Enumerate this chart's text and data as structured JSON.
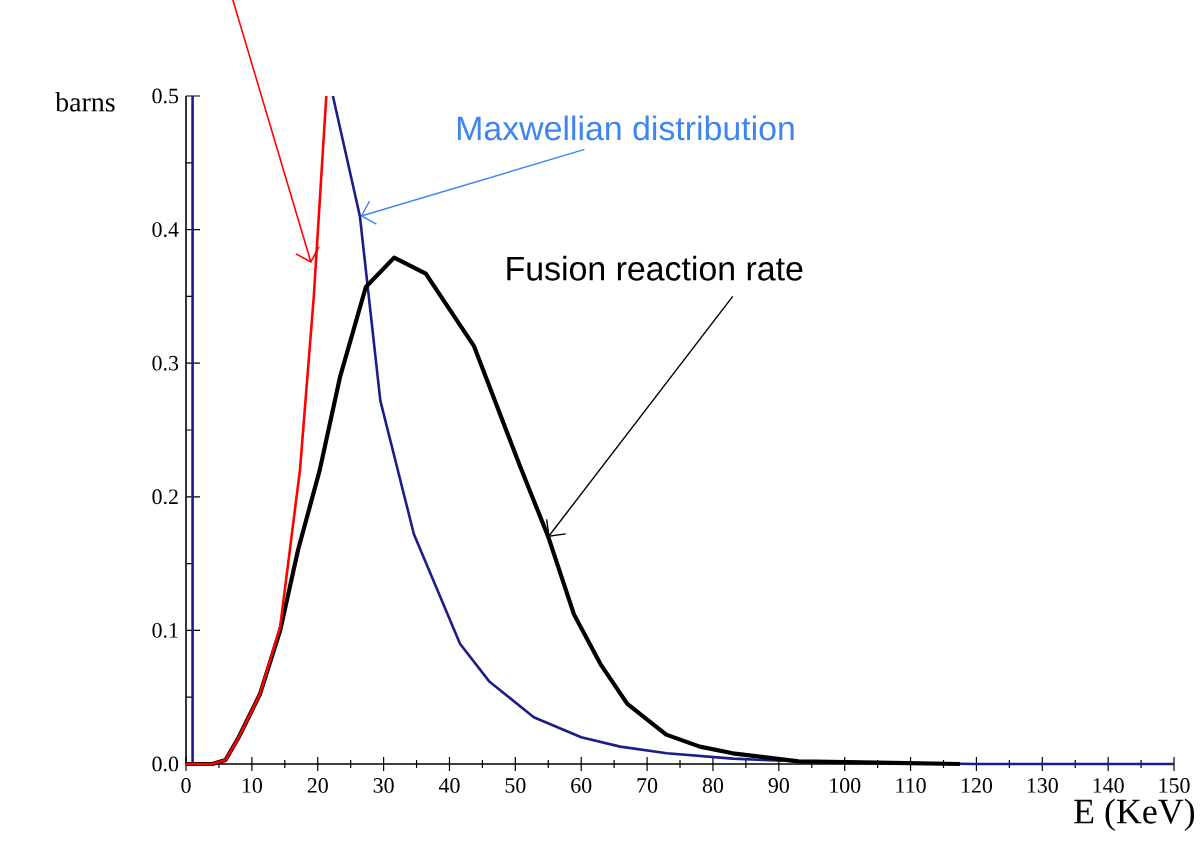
{
  "chart_data": {
    "type": "line",
    "xlabel": "E (KeV)",
    "ylabel": "barns",
    "xlim": [
      0,
      150
    ],
    "ylim": [
      0,
      0.5
    ],
    "xticks": [
      0,
      10,
      20,
      30,
      40,
      50,
      60,
      70,
      80,
      90,
      100,
      110,
      120,
      130,
      140,
      150
    ],
    "yticks": [
      {
        "value": 0,
        "label": "0.0"
      },
      {
        "value": 0.1,
        "label": "0.1"
      },
      {
        "value": 0.2,
        "label": "0.2"
      },
      {
        "value": 0.3,
        "label": "0.3"
      },
      {
        "value": 0.4,
        "label": "0.4"
      },
      {
        "value": 0.5,
        "label": "0.5"
      }
    ],
    "grid": false,
    "marker": "none",
    "line_style": "solid",
    "series": [
      {
        "color": "#1c1c8a",
        "x": [
          1,
          1,
          11,
          22.3,
          26.4,
          29.5,
          34.6,
          41.6,
          46,
          52.8,
          60,
          65.9,
          73,
          83,
          93,
          105,
          120,
          150
        ],
        "values": [
          0,
          0.5,
          null,
          0.5,
          0.41,
          0.272,
          0.172,
          0.09,
          0.062,
          0.035,
          0.02,
          0.013,
          0.008,
          0.004,
          0.002,
          0.001,
          0,
          0
        ]
      },
      {
        "color": "#000000",
        "x": [
          0,
          4,
          6,
          8,
          11.2,
          14.3,
          17,
          20.3,
          23.4,
          27.3,
          31.6,
          36.4,
          43.7,
          50.7,
          55,
          58.9,
          62.9,
          67,
          72.9,
          78,
          83,
          93,
          105,
          117.5
        ],
        "values": [
          0,
          0,
          0.003,
          0.02,
          0.052,
          0.1,
          0.16,
          0.22,
          0.29,
          0.357,
          0.379,
          0.367,
          0.313,
          0.223,
          0.17,
          0.112,
          0.075,
          0.045,
          0.022,
          0.013,
          0.008,
          0.002,
          0.001,
          0
        ]
      },
      {
        "color": "#ff0000",
        "x": [
          0,
          4,
          6,
          8,
          11.2,
          14.3,
          17.3,
          19.4,
          21.3
        ],
        "values": [
          0,
          0,
          0.003,
          0.02,
          0.052,
          0.103,
          0.22,
          0.35,
          0.5
        ]
      }
    ],
    "annotations": [
      {
        "text": "Maxwellian distribution",
        "x": 26.5,
        "y": 0.41
      },
      {
        "text": "Fusion reaction rate",
        "x": 55,
        "y": 0.17
      }
    ]
  }
}
